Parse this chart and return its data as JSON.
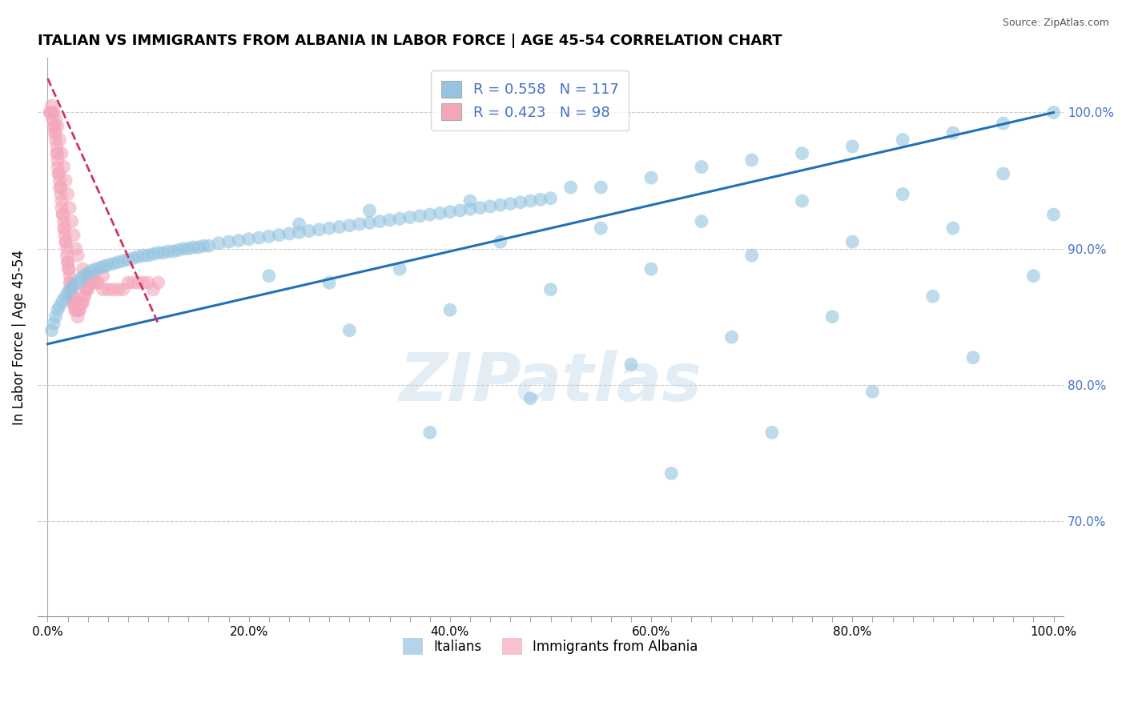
{
  "title": "ITALIAN VS IMMIGRANTS FROM ALBANIA IN LABOR FORCE | AGE 45-54 CORRELATION CHART",
  "source": "Source: ZipAtlas.com",
  "ylabel": "In Labor Force | Age 45-54",
  "x_tick_labels": [
    "0.0%",
    "",
    "",
    "",
    "",
    "",
    "",
    "",
    "",
    "",
    "20.0%",
    "",
    "",
    "",
    "",
    "",
    "",
    "",
    "",
    "",
    "40.0%",
    "",
    "",
    "",
    "",
    "",
    "",
    "",
    "",
    "",
    "60.0%",
    "",
    "",
    "",
    "",
    "",
    "",
    "",
    "",
    "",
    "80.0%",
    "",
    "",
    "",
    "",
    "",
    "",
    "",
    "",
    "",
    "100.0%"
  ],
  "x_tick_positions": [
    0,
    2,
    4,
    6,
    8,
    10,
    12,
    14,
    16,
    18,
    20,
    22,
    24,
    26,
    28,
    30,
    32,
    34,
    36,
    38,
    40,
    42,
    44,
    46,
    48,
    50,
    52,
    54,
    56,
    58,
    60,
    62,
    64,
    66,
    68,
    70,
    72,
    74,
    76,
    78,
    80,
    82,
    84,
    86,
    88,
    90,
    92,
    94,
    96,
    98,
    100
  ],
  "y_tick_labels_right": [
    "100.0%",
    "90.0%",
    "80.0%",
    "70.0%"
  ],
  "y_tick_positions_right": [
    100,
    90,
    80,
    70
  ],
  "xlim": [
    -1,
    101
  ],
  "ylim": [
    63,
    104
  ],
  "legend_r_blue": "R = 0.558",
  "legend_n_blue": "N = 117",
  "legend_r_pink": "R = 0.423",
  "legend_n_pink": "N = 98",
  "blue_color": "#94c4e0",
  "pink_color": "#f4a7bb",
  "blue_line_color": "#2171b5",
  "pink_line_color": "#d63060",
  "legend_r_color": "#4472C4",
  "watermark_text": "ZIPatlas",
  "background_color": "#ffffff",
  "blue_trend_x0": 0,
  "blue_trend_y0": 83.0,
  "blue_trend_x1": 100,
  "blue_trend_y1": 100.0,
  "pink_trend_x0": 0,
  "pink_trend_y0": 102.5,
  "pink_trend_x1": 11,
  "pink_trend_y1": 84.5,
  "blue_scatter_x": [
    0.4,
    0.6,
    0.8,
    1.0,
    1.2,
    1.5,
    1.8,
    2.0,
    2.3,
    2.6,
    3.0,
    3.3,
    3.6,
    4.0,
    4.4,
    4.8,
    5.2,
    5.6,
    6.0,
    6.5,
    7.0,
    7.5,
    8.0,
    8.5,
    9.0,
    9.5,
    10.0,
    10.5,
    11.0,
    11.5,
    12.0,
    12.5,
    13.0,
    13.5,
    14.0,
    14.5,
    15.0,
    15.5,
    16.0,
    17.0,
    18.0,
    19.0,
    20.0,
    21.0,
    22.0,
    23.0,
    24.0,
    25.0,
    26.0,
    27.0,
    28.0,
    29.0,
    30.0,
    31.0,
    32.0,
    33.0,
    34.0,
    35.0,
    36.0,
    37.0,
    38.0,
    39.0,
    40.0,
    41.0,
    42.0,
    43.0,
    44.0,
    45.0,
    46.0,
    47.0,
    48.0,
    49.0,
    50.0,
    55.0,
    60.0,
    65.0,
    70.0,
    75.0,
    80.0,
    85.0,
    90.0,
    95.0,
    100.0,
    22.0,
    28.0,
    35.0,
    45.0,
    55.0,
    65.0,
    75.0,
    85.0,
    95.0,
    30.0,
    40.0,
    50.0,
    60.0,
    70.0,
    80.0,
    90.0,
    100.0,
    38.0,
    48.0,
    58.0,
    68.0,
    78.0,
    88.0,
    98.0,
    25.0,
    32.0,
    42.0,
    52.0,
    62.0,
    72.0,
    82.0,
    92.0
  ],
  "blue_scatter_y": [
    84.0,
    84.5,
    85.0,
    85.5,
    85.8,
    86.2,
    86.5,
    86.8,
    87.0,
    87.3,
    87.5,
    87.8,
    88.0,
    88.2,
    88.4,
    88.5,
    88.6,
    88.7,
    88.8,
    88.9,
    89.0,
    89.1,
    89.2,
    89.3,
    89.4,
    89.5,
    89.5,
    89.6,
    89.7,
    89.7,
    89.8,
    89.8,
    89.9,
    90.0,
    90.0,
    90.1,
    90.1,
    90.2,
    90.2,
    90.4,
    90.5,
    90.6,
    90.7,
    90.8,
    90.9,
    91.0,
    91.1,
    91.2,
    91.3,
    91.4,
    91.5,
    91.6,
    91.7,
    91.8,
    91.9,
    92.0,
    92.1,
    92.2,
    92.3,
    92.4,
    92.5,
    92.6,
    92.7,
    92.8,
    92.9,
    93.0,
    93.1,
    93.2,
    93.3,
    93.4,
    93.5,
    93.6,
    93.7,
    94.5,
    95.2,
    96.0,
    96.5,
    97.0,
    97.5,
    98.0,
    98.5,
    99.2,
    100.0,
    88.0,
    87.5,
    88.5,
    90.5,
    91.5,
    92.0,
    93.5,
    94.0,
    95.5,
    84.0,
    85.5,
    87.0,
    88.5,
    89.5,
    90.5,
    91.5,
    92.5,
    76.5,
    79.0,
    81.5,
    83.5,
    85.0,
    86.5,
    88.0,
    91.8,
    92.8,
    93.5,
    94.5,
    73.5,
    76.5,
    79.5,
    82.0
  ],
  "pink_scatter_x": [
    0.2,
    0.3,
    0.4,
    0.5,
    0.5,
    0.6,
    0.7,
    0.7,
    0.8,
    0.8,
    0.9,
    0.9,
    1.0,
    1.0,
    1.0,
    1.1,
    1.1,
    1.2,
    1.2,
    1.3,
    1.3,
    1.4,
    1.4,
    1.5,
    1.5,
    1.6,
    1.6,
    1.7,
    1.7,
    1.8,
    1.8,
    1.9,
    1.9,
    2.0,
    2.0,
    2.1,
    2.1,
    2.2,
    2.2,
    2.3,
    2.3,
    2.4,
    2.4,
    2.5,
    2.5,
    2.6,
    2.7,
    2.7,
    2.8,
    2.9,
    3.0,
    3.0,
    3.1,
    3.2,
    3.3,
    3.4,
    3.5,
    3.6,
    3.7,
    3.8,
    3.9,
    4.0,
    4.1,
    4.2,
    4.3,
    4.5,
    4.8,
    5.0,
    5.5,
    6.0,
    6.5,
    7.0,
    7.5,
    8.0,
    8.5,
    9.0,
    9.5,
    10.0,
    10.5,
    11.0,
    0.4,
    0.6,
    0.8,
    1.0,
    1.2,
    1.4,
    1.6,
    1.8,
    2.0,
    2.2,
    2.4,
    2.6,
    2.8,
    3.0,
    3.5,
    4.0,
    4.5,
    5.5
  ],
  "pink_scatter_y": [
    100.0,
    100.0,
    100.0,
    100.0,
    99.5,
    99.0,
    99.0,
    98.5,
    98.5,
    98.0,
    97.5,
    97.0,
    97.0,
    96.5,
    96.0,
    95.5,
    95.5,
    95.0,
    94.5,
    94.5,
    94.0,
    93.5,
    93.0,
    92.5,
    92.5,
    92.0,
    91.5,
    91.5,
    91.0,
    90.5,
    90.5,
    90.0,
    89.5,
    89.0,
    89.0,
    88.5,
    88.5,
    88.0,
    87.5,
    87.5,
    87.0,
    87.0,
    86.5,
    86.5,
    86.0,
    86.0,
    86.0,
    85.5,
    85.5,
    85.5,
    85.5,
    85.0,
    85.5,
    85.5,
    86.0,
    86.0,
    86.0,
    86.5,
    86.5,
    87.0,
    87.0,
    87.0,
    87.5,
    87.5,
    87.5,
    87.5,
    87.5,
    87.5,
    87.0,
    87.0,
    87.0,
    87.0,
    87.0,
    87.5,
    87.5,
    87.5,
    87.5,
    87.5,
    87.0,
    87.5,
    100.5,
    100.0,
    99.5,
    99.0,
    98.0,
    97.0,
    96.0,
    95.0,
    94.0,
    93.0,
    92.0,
    91.0,
    90.0,
    89.5,
    88.5,
    88.0,
    88.0,
    88.0
  ]
}
